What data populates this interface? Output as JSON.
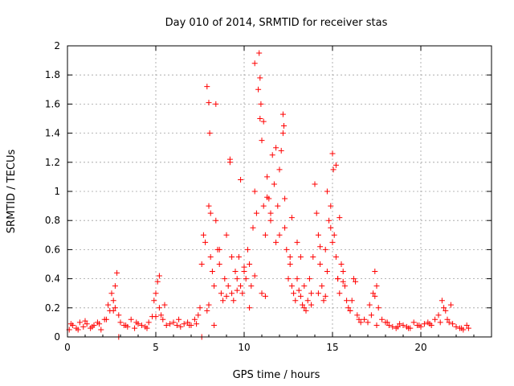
{
  "chart_data": {
    "type": "scatter",
    "title": "Day 010 of 2014, SRMTID for receiver stas",
    "xlabel": "GPS time / hours",
    "ylabel": "SRMTID / TECUs",
    "xlim": [
      0,
      24
    ],
    "ylim": [
      0,
      2
    ],
    "xticks": [
      0,
      5,
      10,
      15,
      20
    ],
    "xtick_labels": [
      "0",
      "5",
      "10",
      "15",
      "20"
    ],
    "yticks": [
      0,
      0.2,
      0.4,
      0.6,
      0.8,
      1,
      1.2,
      1.4,
      1.6,
      1.8,
      2
    ],
    "ytick_labels": [
      "0",
      "0.2",
      "0.4",
      "0.6",
      "0.8",
      "1",
      "1.2",
      "1.4",
      "1.6",
      "1.8",
      "2"
    ],
    "grid": true,
    "marker": "+",
    "color": "#ff0000",
    "series": [
      {
        "name": "SRMTID",
        "x": [
          0.1,
          0.3,
          0.5,
          0.7,
          0.9,
          1.1,
          1.3,
          1.5,
          1.7,
          1.9,
          2.1,
          2.3,
          2.4,
          2.5,
          2.6,
          2.7,
          2.8,
          2.9,
          3.0,
          3.2,
          3.4,
          3.6,
          3.8,
          4.0,
          4.2,
          4.4,
          4.6,
          4.8,
          4.9,
          5.0,
          5.1,
          5.2,
          5.3,
          5.4,
          5.6,
          5.8,
          6.0,
          6.2,
          6.4,
          6.6,
          6.8,
          7.0,
          7.2,
          7.4,
          7.5,
          7.6,
          7.7,
          7.8,
          7.9,
          8.0,
          8.0,
          8.05,
          8.1,
          8.2,
          8.3,
          8.4,
          8.5,
          8.6,
          8.7,
          8.8,
          8.9,
          9.0,
          9.1,
          9.2,
          9.3,
          9.4,
          9.5,
          9.6,
          9.7,
          9.8,
          9.9,
          10.0,
          10.1,
          10.2,
          10.3,
          10.4,
          10.5,
          10.6,
          10.7,
          10.8,
          10.85,
          10.9,
          10.95,
          11.0,
          11.1,
          11.2,
          11.3,
          11.4,
          11.5,
          11.6,
          11.7,
          11.8,
          11.9,
          12.0,
          12.1,
          12.2,
          12.25,
          12.3,
          12.4,
          12.5,
          12.6,
          12.7,
          12.8,
          12.9,
          13.0,
          13.1,
          13.2,
          13.3,
          13.4,
          13.5,
          13.6,
          13.7,
          13.8,
          13.9,
          14.0,
          14.1,
          14.2,
          14.3,
          14.4,
          14.5,
          14.6,
          14.7,
          14.8,
          14.9,
          15.0,
          15.05,
          15.1,
          15.2,
          15.3,
          15.4,
          15.5,
          15.6,
          15.7,
          15.8,
          15.9,
          16.0,
          16.1,
          16.2,
          16.4,
          16.6,
          16.8,
          17.0,
          17.2,
          17.3,
          17.4,
          17.5,
          17.6,
          17.8,
          18.0,
          18.2,
          18.4,
          18.6,
          18.8,
          19.0,
          19.2,
          19.4,
          19.6,
          19.8,
          20.0,
          20.2,
          20.4,
          20.6,
          20.8,
          21.0,
          21.2,
          21.3,
          21.4,
          21.5,
          21.6,
          21.8,
          22.0,
          22.2,
          22.4,
          22.6,
          22.7,
          0.2,
          0.6,
          1.0,
          1.4,
          1.8,
          2.2,
          2.6,
          2.7,
          3.3,
          3.9,
          4.5,
          5.0,
          5.2,
          5.5,
          6.3,
          6.9,
          7.3,
          7.9,
          8.0,
          8.3,
          8.6,
          9.0,
          9.3,
          9.6,
          10.0,
          10.3,
          10.6,
          11.0,
          11.2,
          11.5,
          11.8,
          12.0,
          12.3,
          12.6,
          13.0,
          13.4,
          13.8,
          14.2,
          14.6,
          15.0,
          15.3,
          15.6,
          16.0,
          16.5,
          17.1,
          17.5,
          18.1,
          18.7,
          19.3,
          19.9,
          20.5,
          21.1,
          21.7,
          22.3,
          7.6,
          8.1,
          9.2,
          11.1,
          12.2,
          14.3,
          14.7,
          15.2,
          10.6,
          10.9,
          11.3,
          12.7,
          9.8,
          8.4,
          14.9,
          15.4,
          13.2,
          16.3,
          17.4,
          2.9
        ],
        "y": [
          0.05,
          0.08,
          0.06,
          0.1,
          0.07,
          0.09,
          0.06,
          0.08,
          0.1,
          0.05,
          0.12,
          0.22,
          0.18,
          0.3,
          0.25,
          0.2,
          0.44,
          0.15,
          0.1,
          0.08,
          0.07,
          0.12,
          0.06,
          0.09,
          0.08,
          0.07,
          0.1,
          0.14,
          0.25,
          0.3,
          0.38,
          0.2,
          0.15,
          0.12,
          0.08,
          0.09,
          0.1,
          0.08,
          0.07,
          0.09,
          0.1,
          0.08,
          0.12,
          0.15,
          0.2,
          0.5,
          0.7,
          0.65,
          1.72,
          1.61,
          0.9,
          1.4,
          0.55,
          0.45,
          0.35,
          0.8,
          0.6,
          0.5,
          0.3,
          0.25,
          0.4,
          0.7,
          0.35,
          1.2,
          0.3,
          0.25,
          0.45,
          0.4,
          0.55,
          0.35,
          0.3,
          0.45,
          0.4,
          0.6,
          0.5,
          0.35,
          0.75,
          1.0,
          0.85,
          1.7,
          1.95,
          1.78,
          1.6,
          1.35,
          0.9,
          0.7,
          1.1,
          0.95,
          0.8,
          1.25,
          1.05,
          0.65,
          0.9,
          1.15,
          1.28,
          1.53,
          1.45,
          0.75,
          0.6,
          0.4,
          0.55,
          0.35,
          0.3,
          0.25,
          0.4,
          0.32,
          0.28,
          0.22,
          0.2,
          0.18,
          0.25,
          0.4,
          0.3,
          0.55,
          1.05,
          0.85,
          0.7,
          0.5,
          0.35,
          0.25,
          0.6,
          0.45,
          0.8,
          0.9,
          1.26,
          1.15,
          0.7,
          0.55,
          0.4,
          0.3,
          0.5,
          0.45,
          0.35,
          0.25,
          0.2,
          0.18,
          0.25,
          0.4,
          0.15,
          0.1,
          0.12,
          0.1,
          0.15,
          0.3,
          0.45,
          0.35,
          0.2,
          0.12,
          0.1,
          0.08,
          0.07,
          0.06,
          0.09,
          0.08,
          0.07,
          0.06,
          0.1,
          0.08,
          0.07,
          0.09,
          0.1,
          0.08,
          0.12,
          0.15,
          0.25,
          0.2,
          0.18,
          0.12,
          0.1,
          0.09,
          0.07,
          0.06,
          0.05,
          0.08,
          0.06,
          0.09,
          0.05,
          0.11,
          0.07,
          0.09,
          0.12,
          0.18,
          0.35,
          0.08,
          0.1,
          0.06,
          0.14,
          0.42,
          0.22,
          0.12,
          0.08,
          0.09,
          0.18,
          0.22,
          0.08,
          0.6,
          0.28,
          0.55,
          0.32,
          0.48,
          0.2,
          0.42,
          0.3,
          0.28,
          0.85,
          1.3,
          0.7,
          0.95,
          0.5,
          0.65,
          0.35,
          0.22,
          0.3,
          0.28,
          0.65,
          0.4,
          0.38,
          0.18,
          0.12,
          0.22,
          0.08,
          0.1,
          0.07,
          0.06,
          0.08,
          0.09,
          0.1,
          0.22,
          0.06,
          0.0,
          0.85,
          1.22,
          1.48,
          1.4,
          0.62,
          1.0,
          1.18,
          1.88,
          1.5,
          0.96,
          0.82,
          1.08,
          1.6,
          0.75,
          0.82,
          0.55,
          0.38,
          0.28,
          0.0
        ]
      }
    ]
  }
}
